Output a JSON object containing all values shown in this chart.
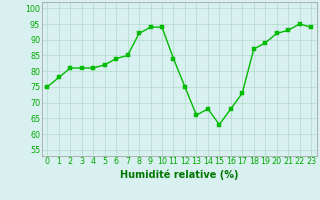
{
  "x": [
    0,
    1,
    2,
    3,
    4,
    5,
    6,
    7,
    8,
    9,
    10,
    11,
    12,
    13,
    14,
    15,
    16,
    17,
    18,
    19,
    20,
    21,
    22,
    23
  ],
  "y": [
    75,
    78,
    81,
    81,
    81,
    82,
    84,
    85,
    92,
    94,
    94,
    84,
    75,
    66,
    68,
    63,
    68,
    73,
    87,
    89,
    92,
    93,
    95,
    94
  ],
  "line_color": "#00bb00",
  "marker_color": "#00bb00",
  "marker": "s",
  "marker_size": 2.2,
  "line_width": 1.0,
  "xlabel": "Humidité relative (%)",
  "xlabel_fontsize": 7,
  "xlabel_color": "#007700",
  "ylabel_ticks": [
    55,
    60,
    65,
    70,
    75,
    80,
    85,
    90,
    95,
    100
  ],
  "ylim": [
    53,
    102
  ],
  "xlim": [
    -0.5,
    23.5
  ],
  "background_color": "#d8f0f0",
  "grid_color": "#b0d8cc",
  "tick_fontsize": 5.8,
  "tick_color": "#00aa00"
}
